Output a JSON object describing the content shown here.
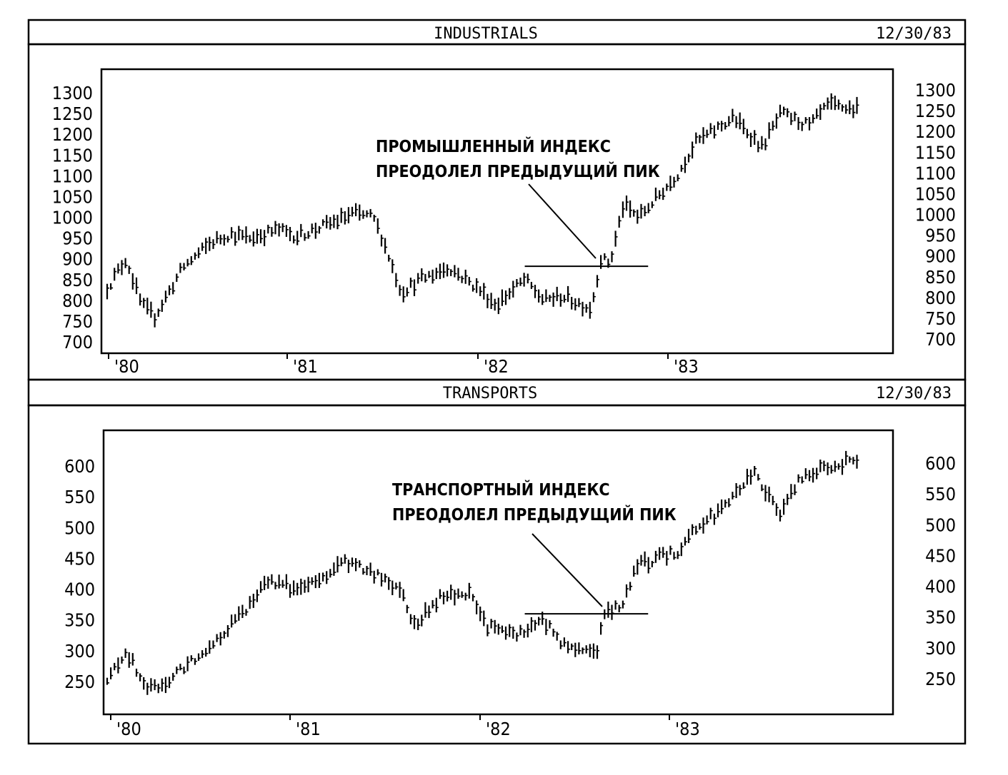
{
  "chart_data": [
    {
      "type": "bar",
      "subtype": "ohlc-bar",
      "title": "INDUSTRIALS",
      "date": "12/30/83",
      "x_ticks": [
        "'80",
        "'81",
        "'82",
        "'83"
      ],
      "y_ticks": [
        700,
        750,
        800,
        850,
        900,
        950,
        1000,
        1050,
        1100,
        1150,
        1200,
        1250,
        1300
      ],
      "ylim": [
        680,
        1340
      ],
      "xlim": [
        1980.0,
        1984.0
      ],
      "annotation": {
        "line1": "ПРОМЫШЛЕННЫЙ ИНДЕКС",
        "line2": "ПРЕОДОЛЕЛ ПРЕДЫДУЩИЙ ПИК"
      },
      "prior_peak_line": {
        "value": 882,
        "x_start": 1982.2,
        "x_end": 1982.85
      },
      "grid": false,
      "x": [
        1980.0,
        1980.1,
        1980.18,
        1980.25,
        1980.4,
        1980.55,
        1980.65,
        1980.75,
        1980.9,
        1981.0,
        1981.15,
        1981.3,
        1981.4,
        1981.45,
        1981.55,
        1981.65,
        1981.8,
        1981.95,
        1982.05,
        1982.2,
        1982.3,
        1982.4,
        1982.55,
        1982.6,
        1982.65,
        1982.72,
        1982.8,
        1982.9,
        1983.0,
        1983.1,
        1983.2,
        1983.3,
        1983.45,
        1983.55,
        1983.7,
        1983.8,
        1983.95,
        1984.0
      ],
      "values": [
        830,
        900,
        790,
        760,
        880,
        940,
        960,
        950,
        970,
        955,
        980,
        1010,
        1000,
        950,
        820,
        850,
        880,
        830,
        790,
        850,
        800,
        810,
        780,
        900,
        890,
        1030,
        1000,
        1050,
        1100,
        1180,
        1210,
        1240,
        1170,
        1250,
        1220,
        1270,
        1260,
        1250
      ]
    },
    {
      "type": "bar",
      "subtype": "ohlc-bar",
      "title": "TRANSPORTS",
      "date": "12/30/83",
      "x_ticks": [
        "'80",
        "'81",
        "'82",
        "'83"
      ],
      "y_ticks": [
        250,
        300,
        350,
        400,
        450,
        500,
        550,
        600
      ],
      "ylim": [
        195,
        640
      ],
      "xlim": [
        1980.0,
        1984.0
      ],
      "annotation": {
        "line1": "ТРАНСПОРТНЫЙ ИНДЕКС",
        "line2": "ПРЕОДОЛЕЛ ПРЕДЫДУЩИЙ ПИК"
      },
      "prior_peak_line": {
        "value": 360,
        "x_start": 1982.2,
        "x_end": 1982.85
      },
      "grid": false,
      "x": [
        1980.0,
        1980.1,
        1980.2,
        1980.28,
        1980.45,
        1980.6,
        1980.75,
        1980.85,
        1981.0,
        1981.1,
        1981.25,
        1981.4,
        1981.55,
        1981.62,
        1981.75,
        1981.9,
        1982.0,
        1982.15,
        1982.3,
        1982.42,
        1982.58,
        1982.62,
        1982.7,
        1982.8,
        1983.0,
        1983.1,
        1983.25,
        1983.4,
        1983.45,
        1983.55,
        1983.65,
        1983.8,
        1983.95,
        1984.0
      ],
      "values": [
        250,
        300,
        240,
        240,
        285,
        325,
        375,
        415,
        400,
        410,
        445,
        425,
        400,
        340,
        385,
        395,
        340,
        325,
        350,
        305,
        300,
        360,
        370,
        440,
        460,
        500,
        530,
        590,
        570,
        520,
        580,
        600,
        610,
        600
      ]
    }
  ]
}
